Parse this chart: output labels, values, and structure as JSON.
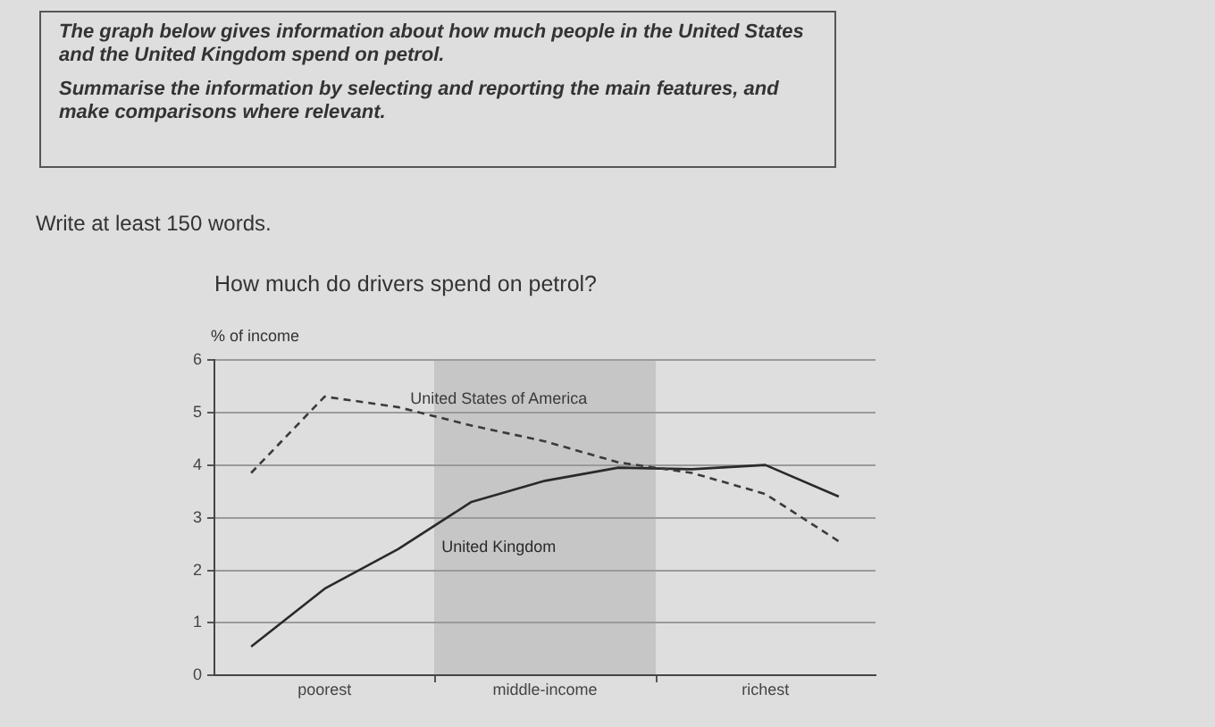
{
  "chart_data": {
    "type": "line",
    "title": "How much do drivers spend on petrol?",
    "ylabel": "% of income",
    "annotations": [
      "The graph below gives information about how much people in the United States and the United Kingdom spend on petrol.",
      "Summarise the information by selecting and reporting the main features, and make comparisons where relevant.",
      "Write at least 150 words."
    ],
    "categories": [
      null,
      "poorest",
      null,
      null,
      "middle-income",
      null,
      null,
      "richest",
      null
    ],
    "series": [
      {
        "name": "United States of America",
        "color": "#3a3a3a",
        "line_style": "dashed",
        "values": [
          3.85,
          5.3,
          5.1,
          4.75,
          4.45,
          4.05,
          3.85,
          3.45,
          2.55
        ]
      },
      {
        "name": "United Kingdom",
        "color": "#2a2a2a",
        "line_style": "solid",
        "values": [
          0.55,
          1.65,
          2.4,
          3.3,
          3.7,
          3.95,
          3.92,
          4.0,
          3.4
        ]
      }
    ],
    "ylim": [
      0,
      6
    ],
    "yticks": [
      0,
      1,
      2,
      3,
      4,
      5,
      6
    ],
    "grid": "y",
    "legend": false,
    "marker": "none"
  }
}
